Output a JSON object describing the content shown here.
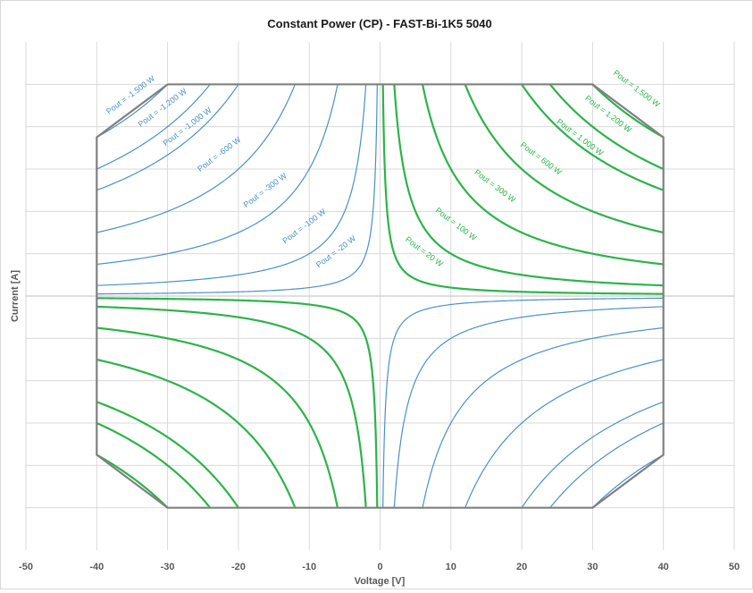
{
  "chart_data": {
    "type": "line",
    "title": "Constant Power (CP) - FAST-Bi-1K5 5040",
    "xlabel": "Voltage [V]",
    "ylabel": "Current [A]",
    "xlim": [
      -50,
      50
    ],
    "ylim": [
      -60,
      60
    ],
    "x_ticks": [
      -50,
      -40,
      -30,
      -20,
      -10,
      0,
      10,
      20,
      30,
      40,
      50
    ],
    "y_gridlines": [
      -50,
      -40,
      -30,
      -20,
      -10,
      0,
      10,
      20,
      30,
      40,
      50
    ],
    "y_tick_labels_shown": false,
    "grid": true,
    "legend": "none",
    "colors": {
      "positive": "#2db34a",
      "negative": "#4a90c8",
      "envelope": "#808080",
      "grid": "#d9d9d9"
    },
    "limits": {
      "voltage_max": 40,
      "current_max": 50,
      "power_max": 1500
    },
    "envelope": {
      "name": "",
      "points": [
        [
          -30,
          50
        ],
        [
          30,
          50
        ],
        [
          40,
          37.5
        ],
        [
          40,
          -37.5
        ],
        [
          30,
          -50
        ],
        [
          -30,
          -50
        ],
        [
          -40,
          -37.5
        ],
        [
          -40,
          37.5
        ],
        [
          -30,
          50
        ]
      ]
    },
    "series": [
      {
        "power": 20,
        "label": "Pout = 20 W",
        "sign": "positive"
      },
      {
        "power": 100,
        "label": "Pout = 100 W",
        "sign": "positive"
      },
      {
        "power": 300,
        "label": "Pout = 300 W",
        "sign": "positive"
      },
      {
        "power": 600,
        "label": "Pout = 600 W",
        "sign": "positive"
      },
      {
        "power": 1000,
        "label": "Pout = 1.000 W",
        "sign": "positive"
      },
      {
        "power": 1200,
        "label": "Pout = 1.200 W",
        "sign": "positive"
      },
      {
        "power": 1500,
        "label": "Pout = 1.500 W",
        "sign": "positive"
      },
      {
        "power": -20,
        "label": "Pout = -20 W",
        "sign": "negative"
      },
      {
        "power": -100,
        "label": "Pout = -100 W",
        "sign": "negative"
      },
      {
        "power": -300,
        "label": "Pout = -300 W",
        "sign": "negative"
      },
      {
        "power": -600,
        "label": "Pout = -600 W",
        "sign": "negative"
      },
      {
        "power": -1000,
        "label": "Pout = -1.000 W",
        "sign": "negative"
      },
      {
        "power": -1200,
        "label": "Pout = -1.200 W",
        "sign": "negative"
      },
      {
        "power": -1500,
        "label": "Pout = -1.500 W",
        "sign": "negative"
      }
    ],
    "labels": [
      {
        "text": "Pout = 1.500 W",
        "x": 36,
        "y": 48.5,
        "angle": 37,
        "sign": "positive"
      },
      {
        "text": "Pout = 1.200 W",
        "x": 32,
        "y": 42.5,
        "angle": 37,
        "sign": "positive"
      },
      {
        "text": "Pout = 1.000 W",
        "x": 28,
        "y": 37.0,
        "angle": 37,
        "sign": "positive"
      },
      {
        "text": "Pout = 600 W",
        "x": 22.5,
        "y": 32.0,
        "angle": 37,
        "sign": "positive"
      },
      {
        "text": "Pout = 300 W",
        "x": 16,
        "y": 25.5,
        "angle": 37,
        "sign": "positive"
      },
      {
        "text": "Pout = 100 W",
        "x": 10.5,
        "y": 16.5,
        "angle": 37,
        "sign": "positive"
      },
      {
        "text": "Pout = 20 W",
        "x": 6,
        "y": 10.0,
        "angle": 37,
        "sign": "positive"
      },
      {
        "text": "Pout = -1.500 W",
        "x": -35,
        "y": 47.0,
        "angle": -37,
        "sign": "negative"
      },
      {
        "text": "Pout = -1.200 W",
        "x": -30.5,
        "y": 44.0,
        "angle": -37,
        "sign": "negative"
      },
      {
        "text": "Pout = -1.000 W",
        "x": -27,
        "y": 39.5,
        "angle": -37,
        "sign": "negative"
      },
      {
        "text": "Pout = -600 W",
        "x": -22.5,
        "y": 33.0,
        "angle": -37,
        "sign": "negative"
      },
      {
        "text": "Pout = -300 W",
        "x": -16,
        "y": 24.5,
        "angle": -37,
        "sign": "negative"
      },
      {
        "text": "Pout = -100 W",
        "x": -10.5,
        "y": 16.0,
        "angle": -37,
        "sign": "negative"
      },
      {
        "text": "Pout = -20 W",
        "x": -6,
        "y": 10.0,
        "angle": -37,
        "sign": "negative"
      }
    ]
  }
}
